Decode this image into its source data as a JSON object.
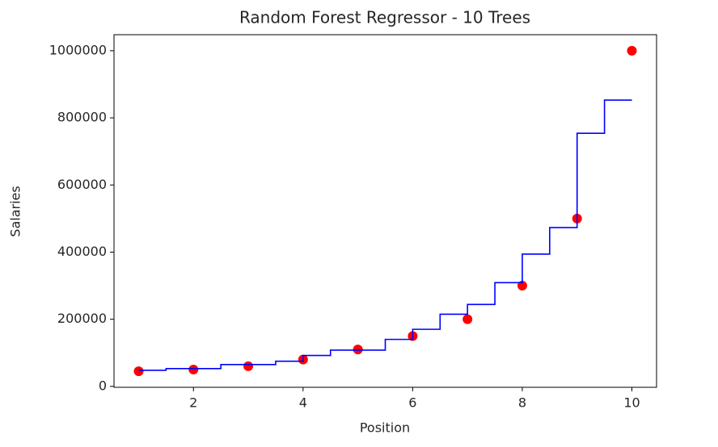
{
  "chart_data": {
    "type": "scatter",
    "title": "Random Forest Regressor - 10 Trees",
    "x_label": "Position",
    "y_label": "Salaries",
    "series": [
      {
        "type": "scatter",
        "color": "#ff0000",
        "x": [
          1,
          2,
          3,
          4,
          5,
          6,
          7,
          8,
          9,
          10
        ],
        "values": [
          45000,
          50000,
          60000,
          80000,
          110000,
          150000,
          200000,
          300000,
          500000,
          1000000
        ]
      },
      {
        "type": "line",
        "color": "#0000ff",
        "x": [
          1,
          1.5,
          1.5,
          2.5,
          2.5,
          3.5,
          3.5,
          4,
          4,
          4.5,
          4.5,
          5.5,
          5.5,
          6,
          6,
          6.5,
          6.5,
          7,
          7,
          7.5,
          7.5,
          8,
          8,
          8.5,
          8.5,
          9,
          9,
          9.5,
          9.5,
          10
        ],
        "values": [
          48000,
          48000,
          53000,
          53000,
          65000,
          65000,
          75000,
          75000,
          92000,
          92000,
          108000,
          108000,
          140000,
          140000,
          170000,
          170000,
          215000,
          215000,
          244000,
          244000,
          309000,
          309000,
          394000,
          394000,
          473000,
          473000,
          754000,
          754000,
          853000,
          853000
        ]
      }
    ],
    "xlim": [
      0.55,
      10.45
    ],
    "ylim": [
      -2750,
      1047750
    ],
    "xticks": [
      2,
      4,
      6,
      8,
      10
    ],
    "yticks": [
      0,
      200000,
      400000,
      600000,
      800000,
      1000000
    ]
  }
}
